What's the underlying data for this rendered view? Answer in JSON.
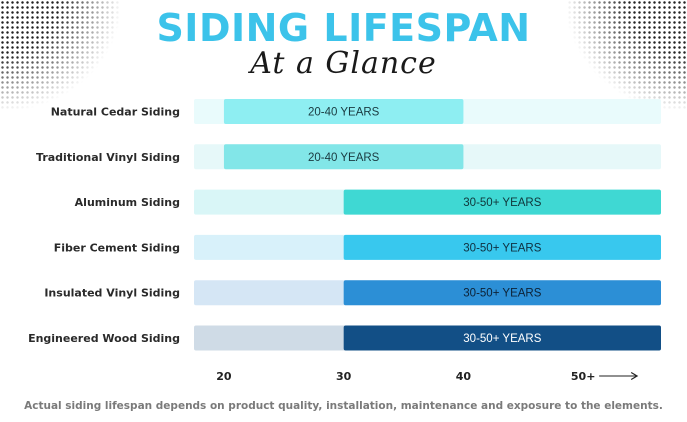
{
  "title": "SIDING LIFESPAN",
  "subtitle": "At a Glance",
  "footnote": "Actual siding lifespan depends on product quality, installation, maintenance and exposure to the elements.",
  "chart_data": {
    "type": "bar",
    "orientation": "horizontal",
    "categories": [
      "Natural Cedar Siding",
      "Traditional Vinyl Siding",
      "Aluminum Siding",
      "Fiber Cement Siding",
      "Insulated Vinyl Siding",
      "Engineered Wood Siding"
    ],
    "ranges": [
      {
        "start": 20,
        "end": 40,
        "label": "20-40 YEARS",
        "color": "#8eeef2",
        "track": "#e9fbfc",
        "label_color": "#1a3a40"
      },
      {
        "start": 20,
        "end": 40,
        "label": "20-40 YEARS",
        "color": "#82e6e8",
        "track": "#e6f8f9",
        "label_color": "#1a3a40"
      },
      {
        "start": 30,
        "end": 50,
        "label": "30-50+ YEARS",
        "color": "#3fd8d3",
        "track": "#d9f6f7",
        "label_color": "#10363a"
      },
      {
        "start": 30,
        "end": 50,
        "label": "30-50+ YEARS",
        "color": "#38c8ee",
        "track": "#d8f1fa",
        "label_color": "#0f3040"
      },
      {
        "start": 30,
        "end": 50,
        "label": "30-50+ YEARS",
        "color": "#2c8fd6",
        "track": "#d5e6f5",
        "label_color": "#0d2236"
      },
      {
        "start": 30,
        "end": 50,
        "label": "30-50+ YEARS",
        "color": "#124f86",
        "track": "#cfdbe6",
        "label_color": "#ffffff"
      }
    ],
    "x_ticks": [
      {
        "value": 20,
        "label": "20"
      },
      {
        "value": 30,
        "label": "30"
      },
      {
        "value": 40,
        "label": "40"
      },
      {
        "value": 50,
        "label": "50+",
        "arrow": true
      }
    ],
    "xlim": [
      17.5,
      56.5
    ],
    "grid": false,
    "legend": "none"
  }
}
